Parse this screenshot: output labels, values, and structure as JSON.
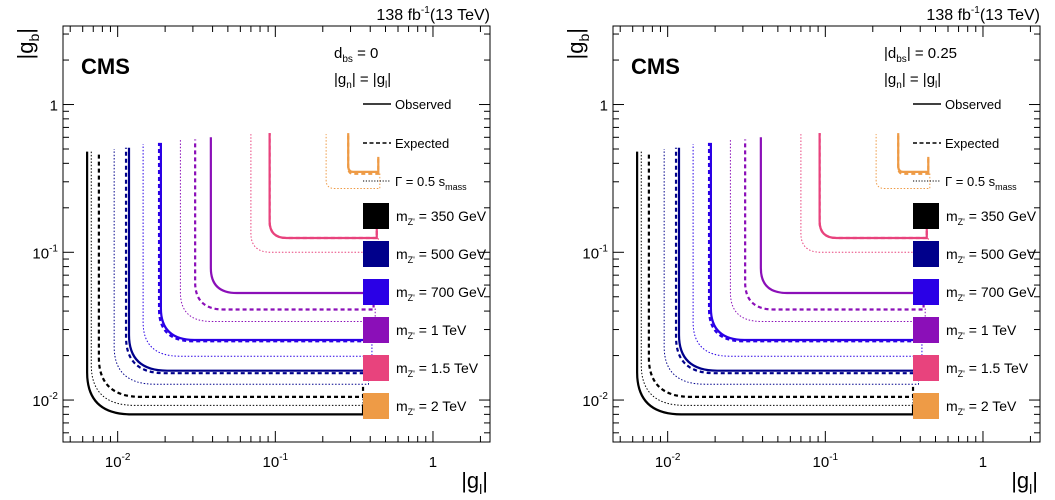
{
  "chart_data": [
    {
      "type": "line",
      "title": "",
      "experiment": "CMS",
      "luminosity_label": "138 fb",
      "luminosity_exponent": "-1",
      "energy_label": "(13 TeV)",
      "xlabel_main": "|g",
      "xlabel_sub": "l",
      "xlabel_tail": "|",
      "ylabel_main": "|g",
      "ylabel_sub": "b",
      "ylabel_tail": "|",
      "x_scale": "log",
      "y_scale": "log",
      "xlim": [
        0.0045,
        2.3
      ],
      "ylim": [
        0.0052,
        3.4
      ],
      "x_ticks": [
        {
          "value": 0.01,
          "base": "10",
          "exp": "-2"
        },
        {
          "value": 0.1,
          "base": "10",
          "exp": "-1"
        },
        {
          "value": 1,
          "base": "1",
          "exp": ""
        }
      ],
      "y_ticks": [
        {
          "value": 0.01,
          "base": "10",
          "exp": "-2"
        },
        {
          "value": 0.1,
          "base": "10",
          "exp": "-1"
        },
        {
          "value": 1,
          "base": "1",
          "exp": ""
        }
      ],
      "condition_1": {
        "main": "d",
        "sub": "bs",
        "tail": " = 0"
      },
      "condition_2": {
        "main": "|g",
        "sub": "n",
        "mid": "| = |g",
        "sub2": "l",
        "tail": "|"
      },
      "legend_styles": [
        {
          "label": "Observed",
          "style": "solid"
        },
        {
          "label": "Expected",
          "style": "dashed"
        },
        {
          "label_main": "Γ = 0.5 s",
          "label_sub": "mass",
          "style": "dotted"
        }
      ],
      "legend_position": "right",
      "series": [
        {
          "name": "m = 350 GeV",
          "label_main": "m",
          "label_sub": "Z'",
          "label_tail": "= 350 GeV",
          "color": "#000000",
          "observed": {
            "xmin": 0.0064,
            "ymin": 0.008,
            "xend": 0.36,
            "yend": 0.48
          },
          "expected": {
            "xmin": 0.0076,
            "ymin": 0.0105,
            "xend": 0.36,
            "yend": 0.48
          },
          "width": {
            "xmin": 0.0068,
            "ymin": 0.0092,
            "xend": 0.36,
            "yend": 0.48
          }
        },
        {
          "name": "m = 500 GeV",
          "label_main": "m",
          "label_sub": "Z'",
          "label_tail": "= 500 GeV",
          "color": "#00008b",
          "observed": {
            "xmin": 0.0118,
            "ymin": 0.0158,
            "xend": 0.38,
            "yend": 0.51
          },
          "expected": {
            "xmin": 0.0113,
            "ymin": 0.0152,
            "xend": 0.38,
            "yend": 0.51
          },
          "width": {
            "xmin": 0.0095,
            "ymin": 0.0128,
            "xend": 0.39,
            "yend": 0.5
          }
        },
        {
          "name": "m = 700 GeV",
          "label_main": "m",
          "label_sub": "Z'",
          "label_tail": "= 700 GeV",
          "color": "#2a00e6",
          "observed": {
            "xmin": 0.0188,
            "ymin": 0.0255,
            "xend": 0.4,
            "yend": 0.55
          },
          "expected": {
            "xmin": 0.0183,
            "ymin": 0.025,
            "xend": 0.4,
            "yend": 0.55
          },
          "width": {
            "xmin": 0.0145,
            "ymin": 0.0198,
            "xend": 0.41,
            "yend": 0.54
          }
        },
        {
          "name": "m = 1 TeV",
          "label_main": "m",
          "label_sub": "Z'",
          "label_tail": "= 1 TeV",
          "color": "#8b0fb8",
          "observed": {
            "xmin": 0.039,
            "ymin": 0.053,
            "xend": 0.42,
            "yend": 0.6
          },
          "expected": {
            "xmin": 0.031,
            "ymin": 0.041,
            "xend": 0.42,
            "yend": 0.58
          },
          "width": {
            "xmin": 0.025,
            "ymin": 0.034,
            "xend": 0.43,
            "yend": 0.58
          }
        },
        {
          "name": "m = 1.5 TeV",
          "label_main": "m",
          "label_sub": "Z'",
          "label_tail": "= 1.5 TeV",
          "color": "#e8437d",
          "observed": {
            "xmin": 0.092,
            "ymin": 0.125,
            "xend": 0.44,
            "yend": 0.64
          },
          "expected": {
            "xmin": 0.092,
            "ymin": 0.125,
            "xend": 0.44,
            "yend": 0.64
          },
          "width": {
            "xmin": 0.07,
            "ymin": 0.1,
            "xend": 0.45,
            "yend": 0.63
          }
        },
        {
          "name": "m = 2 TeV",
          "label_main": "m",
          "label_sub": "Z'",
          "label_tail": "= 2 TeV",
          "color": "#ee9b46",
          "observed": {
            "xmin": 0.29,
            "ymin": 0.35,
            "xend": 0.45,
            "yend": 0.64
          },
          "expected": {
            "xmin": 0.29,
            "ymin": 0.34,
            "xend": 0.45,
            "yend": 0.64
          },
          "width": {
            "xmin": 0.21,
            "ymin": 0.27,
            "xend": 0.46,
            "yend": 0.63
          }
        }
      ]
    },
    {
      "type": "line",
      "title": "",
      "experiment": "CMS",
      "luminosity_label": "138 fb",
      "luminosity_exponent": "-1",
      "energy_label": "(13 TeV)",
      "xlabel_main": "|g",
      "xlabel_sub": "l",
      "xlabel_tail": "|",
      "ylabel_main": "|g",
      "ylabel_sub": "b",
      "ylabel_tail": "|",
      "x_scale": "log",
      "y_scale": "log",
      "xlim": [
        0.0045,
        2.3
      ],
      "ylim": [
        0.0052,
        3.4
      ],
      "x_ticks": [
        {
          "value": 0.01,
          "base": "10",
          "exp": "-2"
        },
        {
          "value": 0.1,
          "base": "10",
          "exp": "-1"
        },
        {
          "value": 1,
          "base": "1",
          "exp": ""
        }
      ],
      "y_ticks": [
        {
          "value": 0.01,
          "base": "10",
          "exp": "-2"
        },
        {
          "value": 0.1,
          "base": "10",
          "exp": "-1"
        },
        {
          "value": 1,
          "base": "1",
          "exp": ""
        }
      ],
      "condition_1": {
        "main": "|d",
        "sub": "bs",
        "tail": "| = 0.25"
      },
      "condition_2": {
        "main": "|g",
        "sub": "n",
        "mid": "| = |g",
        "sub2": "l",
        "tail": "|"
      },
      "legend_styles": [
        {
          "label": "Observed",
          "style": "solid"
        },
        {
          "label": "Expected",
          "style": "dashed"
        },
        {
          "label_main": "Γ = 0.5 s",
          "label_sub": "mass",
          "style": "dotted"
        }
      ],
      "legend_position": "right",
      "series": [
        {
          "name": "m = 350 GeV",
          "label_main": "m",
          "label_sub": "Z'",
          "label_tail": "= 350 GeV",
          "color": "#000000",
          "observed": {
            "xmin": 0.0064,
            "ymin": 0.008,
            "xend": 0.36,
            "yend": 0.48
          },
          "expected": {
            "xmin": 0.0076,
            "ymin": 0.0105,
            "xend": 0.36,
            "yend": 0.48
          },
          "width": {
            "xmin": 0.0068,
            "ymin": 0.0092,
            "xend": 0.36,
            "yend": 0.48
          }
        },
        {
          "name": "m = 500 GeV",
          "label_main": "m",
          "label_sub": "Z'",
          "label_tail": "= 500 GeV",
          "color": "#00008b",
          "observed": {
            "xmin": 0.0118,
            "ymin": 0.0158,
            "xend": 0.38,
            "yend": 0.51
          },
          "expected": {
            "xmin": 0.0113,
            "ymin": 0.0152,
            "xend": 0.38,
            "yend": 0.51
          },
          "width": {
            "xmin": 0.0095,
            "ymin": 0.0128,
            "xend": 0.39,
            "yend": 0.5
          }
        },
        {
          "name": "m = 700 GeV",
          "label_main": "m",
          "label_sub": "Z'",
          "label_tail": "= 700 GeV",
          "color": "#2a00e6",
          "observed": {
            "xmin": 0.0188,
            "ymin": 0.0255,
            "xend": 0.4,
            "yend": 0.55
          },
          "expected": {
            "xmin": 0.0183,
            "ymin": 0.025,
            "xend": 0.4,
            "yend": 0.55
          },
          "width": {
            "xmin": 0.0145,
            "ymin": 0.0198,
            "xend": 0.41,
            "yend": 0.54
          }
        },
        {
          "name": "m = 1 TeV",
          "label_main": "m",
          "label_sub": "Z'",
          "label_tail": "= 1 TeV",
          "color": "#8b0fb8",
          "observed": {
            "xmin": 0.039,
            "ymin": 0.053,
            "xend": 0.42,
            "yend": 0.6
          },
          "expected": {
            "xmin": 0.031,
            "ymin": 0.041,
            "xend": 0.42,
            "yend": 0.58
          },
          "width": {
            "xmin": 0.025,
            "ymin": 0.034,
            "xend": 0.43,
            "yend": 0.58
          }
        },
        {
          "name": "m = 1.5 TeV",
          "label_main": "m",
          "label_sub": "Z'",
          "label_tail": "= 1.5 TeV",
          "color": "#e8437d",
          "observed": {
            "xmin": 0.092,
            "ymin": 0.125,
            "xend": 0.44,
            "yend": 0.64
          },
          "expected": {
            "xmin": 0.092,
            "ymin": 0.125,
            "xend": 0.44,
            "yend": 0.64
          },
          "width": {
            "xmin": 0.07,
            "ymin": 0.1,
            "xend": 0.45,
            "yend": 0.63
          }
        },
        {
          "name": "m = 2 TeV",
          "label_main": "m",
          "label_sub": "Z'",
          "label_tail": "= 2 TeV",
          "color": "#ee9b46",
          "observed": {
            "xmin": 0.29,
            "ymin": 0.35,
            "xend": 0.45,
            "yend": 0.64
          },
          "expected": {
            "xmin": 0.29,
            "ymin": 0.34,
            "xend": 0.45,
            "yend": 0.64
          },
          "width": {
            "xmin": 0.21,
            "ymin": 0.27,
            "xend": 0.46,
            "yend": 0.63
          }
        }
      ]
    }
  ]
}
